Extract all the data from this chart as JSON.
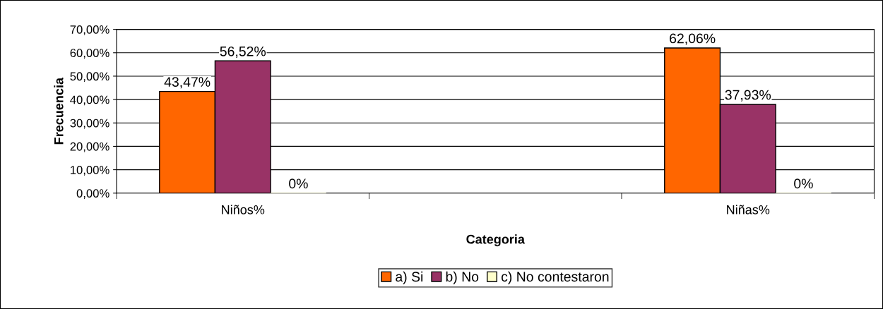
{
  "chart_data": {
    "type": "bar",
    "xlabel": "Categoria",
    "ylabel": "Frecuencia",
    "categories": [
      "Niños%",
      null,
      "Niñas%"
    ],
    "series": [
      {
        "name": "a) Si",
        "color": "#ff6600",
        "values": [
          43.47,
          null,
          62.06
        ],
        "value_labels": [
          "43,47%",
          null,
          "62,06%"
        ]
      },
      {
        "name": "b) No",
        "color": "#993366",
        "values": [
          56.52,
          null,
          37.93
        ],
        "value_labels": [
          "56,52%",
          null,
          "37,93%"
        ]
      },
      {
        "name": "c) No contestaron",
        "color": "#ffffcc",
        "values": [
          0,
          null,
          0
        ],
        "value_labels": [
          "0%",
          null,
          "0%"
        ]
      }
    ],
    "ylim": [
      0,
      70
    ],
    "yticks": [
      {
        "value": 0,
        "label": "0,00%"
      },
      {
        "value": 10,
        "label": "10,00%"
      },
      {
        "value": 20,
        "label": "20,00%"
      },
      {
        "value": 30,
        "label": "30,00%"
      },
      {
        "value": 40,
        "label": "40,00%"
      },
      {
        "value": 50,
        "label": "50,00%"
      },
      {
        "value": 60,
        "label": "60,00%"
      },
      {
        "value": 70,
        "label": "70,00%"
      }
    ],
    "grid": "y",
    "legend": "bottom"
  }
}
